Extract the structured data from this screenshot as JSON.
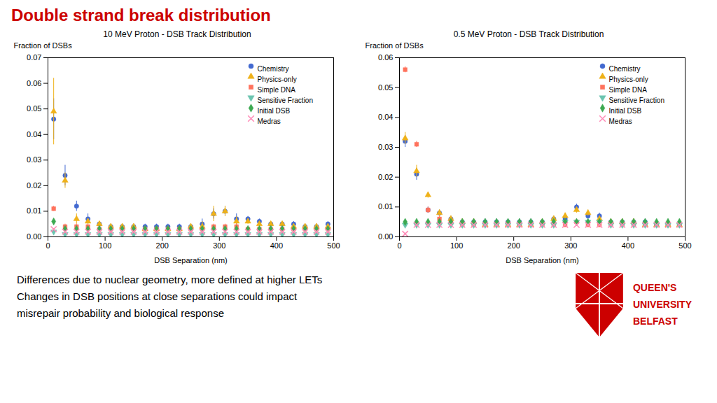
{
  "title": "Double strand break distribution",
  "annotations": [
    [
      "Differences due to nuclear geometry, more defined at higher LETs",
      "Changes in DSB positions at close separations could impact",
      "misrepair probability and biological response"
    ],
    [
      "QUEEN'S",
      "UNIVERSITY",
      "BELFAST"
    ]
  ],
  "chart_data": [
    {
      "type": "scatter",
      "title": "10 MeV Proton - DSB Track Distribution",
      "xlabel": "DSB Separation (nm)",
      "ylabel": "Fraction of DSBs",
      "xlim": [
        0,
        500
      ],
      "xticks": [
        0,
        100,
        200,
        300,
        400,
        500
      ],
      "ylim": [
        0,
        0.07
      ],
      "yticks": [
        {
          "value": 0,
          "label": "0.00"
        },
        {
          "value": 0.01,
          "label": "0.01"
        },
        {
          "value": 0.02,
          "label": "0.02"
        },
        {
          "value": 0.03,
          "label": "0.03"
        },
        {
          "value": 0.04,
          "label": "0.04"
        },
        {
          "value": 0.05,
          "label": "0.05"
        },
        {
          "value": 0.06,
          "label": "0.06"
        },
        {
          "value": 0.07,
          "label": "0.07"
        }
      ],
      "grid": false,
      "legend": "upper-right",
      "x": [
        10,
        30,
        50,
        70,
        90,
        110,
        130,
        150,
        170,
        190,
        210,
        230,
        250,
        270,
        290,
        310,
        330,
        350,
        370,
        390,
        410,
        430,
        450,
        470,
        490
      ],
      "series": [
        {
          "name": "Chemistry",
          "marker": "circle",
          "values": [
            0.046,
            0.024,
            0.012,
            0.007,
            0.005,
            0.004,
            0.004,
            0.004,
            0.004,
            0.004,
            0.004,
            0.004,
            0.004,
            0.005,
            0.009,
            0.01,
            0.007,
            0.007,
            0.006,
            0.005,
            0.005,
            0.005,
            0.004,
            0.004,
            0.005
          ],
          "yerr": [
            0.008,
            0.004,
            0.002,
            0.002,
            0.001,
            0.001,
            0.001,
            0.001,
            0.001,
            0.001,
            0.001,
            0.001,
            0.001,
            0.002,
            0.002,
            0.002,
            0.002,
            0.001,
            0.001,
            0.001,
            0.001,
            0.001,
            0.001,
            0.001,
            0.001
          ]
        },
        {
          "name": "Physics-only",
          "marker": "triangle-up",
          "values": [
            0.049,
            0.022,
            0.007,
            0.006,
            0.005,
            0.004,
            0.004,
            0.004,
            0.003,
            0.003,
            0.003,
            0.003,
            0.004,
            0.004,
            0.009,
            0.01,
            0.006,
            0.006,
            0.005,
            0.005,
            0.005,
            0.004,
            0.004,
            0.004,
            0.004
          ],
          "yerr": [
            0.013,
            0.003,
            0.002,
            0.001,
            0.001,
            0.001,
            0.001,
            0.001,
            0.001,
            0.001,
            0.001,
            0.001,
            0.001,
            0.002,
            0.003,
            0.002,
            0.002,
            0.001,
            0.001,
            0.001,
            0.001,
            0.001,
            0.001,
            0.001,
            0.001
          ]
        },
        {
          "name": "Simple DNA",
          "marker": "square",
          "values": [
            0.011,
            0.004,
            0.004,
            0.004,
            0.003,
            0.003,
            0.003,
            0.003,
            0.003,
            0.003,
            0.003,
            0.003,
            0.003,
            0.003,
            0.004,
            0.004,
            0.004,
            0.003,
            0.003,
            0.003,
            0.003,
            0.003,
            0.003,
            0.003,
            0.003
          ],
          "yerr": [
            0.001,
            0.001,
            0.001,
            0.001,
            0.0005,
            0.0005,
            0.0005,
            0.0005,
            0.0005,
            0.0005,
            0.0005,
            0.0005,
            0.0005,
            0.0005,
            0.001,
            0.001,
            0.001,
            0.001,
            0.0005,
            0.0005,
            0.0005,
            0.0005,
            0.0005,
            0.0005,
            0.0005
          ]
        },
        {
          "name": "Sensitive Fraction",
          "marker": "triangle-down",
          "values": [
            0.002,
            0.001,
            0.001,
            0.001,
            0.001,
            0.001,
            0.001,
            0.001,
            0.001,
            0.001,
            0.001,
            0.001,
            0.001,
            0.001,
            0.001,
            0.001,
            0.001,
            0.001,
            0.001,
            0.001,
            0.001,
            0.001,
            0.001,
            0.001,
            0.001
          ],
          "yerr": [
            0.0003,
            0.0002,
            0.0002,
            0.0002,
            0.0002,
            0.0002,
            0.0002,
            0.0002,
            0.0002,
            0.0002,
            0.0002,
            0.0002,
            0.0002,
            0.0002,
            0.0002,
            0.0002,
            0.0002,
            0.0002,
            0.0002,
            0.0002,
            0.0002,
            0.0002,
            0.0002,
            0.0002,
            0.0002
          ]
        },
        {
          "name": "Initial DSB",
          "marker": "diamond",
          "values": [
            0.006,
            0.003,
            0.003,
            0.003,
            0.003,
            0.003,
            0.003,
            0.003,
            0.003,
            0.003,
            0.003,
            0.003,
            0.003,
            0.003,
            0.003,
            0.003,
            0.003,
            0.003,
            0.003,
            0.003,
            0.003,
            0.003,
            0.003,
            0.003,
            0.003
          ],
          "yerr": [
            0.0005,
            0.0003,
            0.0003,
            0.0003,
            0.0003,
            0.0003,
            0.0003,
            0.0003,
            0.0003,
            0.0003,
            0.0003,
            0.0003,
            0.0003,
            0.0003,
            0.0003,
            0.0003,
            0.0003,
            0.0003,
            0.0003,
            0.0003,
            0.0003,
            0.0003,
            0.0003,
            0.0003,
            0.0003
          ]
        },
        {
          "name": "Medras",
          "marker": "x",
          "values": [
            0.003,
            0.002,
            0.002,
            0.002,
            0.002,
            0.002,
            0.002,
            0.002,
            0.002,
            0.002,
            0.002,
            0.002,
            0.002,
            0.002,
            0.002,
            0.002,
            0.002,
            0.002,
            0.002,
            0.002,
            0.002,
            0.002,
            0.002,
            0.002,
            0.002
          ],
          "yerr": [
            0.0003,
            0.0002,
            0.0002,
            0.0002,
            0.0002,
            0.0002,
            0.0002,
            0.0002,
            0.0002,
            0.0002,
            0.0002,
            0.0002,
            0.0002,
            0.0002,
            0.0002,
            0.0002,
            0.0002,
            0.0002,
            0.0002,
            0.0002,
            0.0002,
            0.0002,
            0.0002,
            0.0002,
            0.0002
          ]
        }
      ]
    },
    {
      "type": "scatter",
      "title": "0.5 MeV Proton - DSB Track Distribution",
      "xlabel": "DSB Separation (nm)",
      "ylabel": "Fraction of DSBs",
      "xlim": [
        0,
        500
      ],
      "xticks": [
        0,
        100,
        200,
        300,
        400,
        500
      ],
      "ylim": [
        0,
        0.06
      ],
      "yticks": [
        {
          "value": 0,
          "label": "0.00"
        },
        {
          "value": 0.01,
          "label": "0.01"
        },
        {
          "value": 0.02,
          "label": "0.02"
        },
        {
          "value": 0.03,
          "label": "0.03"
        },
        {
          "value": 0.04,
          "label": "0.04"
        },
        {
          "value": 0.05,
          "label": "0.05"
        },
        {
          "value": 0.06,
          "label": "0.06"
        }
      ],
      "grid": false,
      "legend": "upper-right",
      "x": [
        10,
        30,
        50,
        70,
        90,
        110,
        130,
        150,
        170,
        190,
        210,
        230,
        250,
        270,
        290,
        310,
        330,
        350,
        370,
        390,
        410,
        430,
        450,
        470,
        490
      ],
      "series": [
        {
          "name": "Chemistry",
          "marker": "circle",
          "values": [
            0.032,
            0.021,
            0.009,
            0.008,
            0.006,
            0.005,
            0.005,
            0.005,
            0.005,
            0.005,
            0.005,
            0.005,
            0.005,
            0.006,
            0.006,
            0.01,
            0.007,
            0.007,
            0.005,
            0.005,
            0.005,
            0.005,
            0.004,
            0.004,
            0.004
          ],
          "yerr": [
            0.002,
            0.002,
            0.001,
            0.001,
            0.001,
            0.001,
            0.001,
            0.001,
            0.001,
            0.001,
            0.001,
            0.001,
            0.001,
            0.001,
            0.001,
            0.001,
            0.001,
            0.001,
            0.001,
            0.001,
            0.001,
            0.001,
            0.001,
            0.001,
            0.001
          ]
        },
        {
          "name": "Physics-only",
          "marker": "triangle-up",
          "values": [
            0.033,
            0.022,
            0.014,
            0.008,
            0.006,
            0.005,
            0.005,
            0.004,
            0.004,
            0.004,
            0.004,
            0.004,
            0.005,
            0.006,
            0.007,
            0.009,
            0.008,
            0.006,
            0.005,
            0.005,
            0.005,
            0.004,
            0.004,
            0.004,
            0.004
          ],
          "yerr": [
            0.002,
            0.002,
            0.001,
            0.001,
            0.001,
            0.001,
            0.001,
            0.001,
            0.001,
            0.001,
            0.001,
            0.001,
            0.001,
            0.001,
            0.001,
            0.001,
            0.001,
            0.001,
            0.001,
            0.001,
            0.001,
            0.001,
            0.001,
            0.001,
            0.001
          ]
        },
        {
          "name": "Simple DNA",
          "marker": "square",
          "values": [
            0.056,
            0.031,
            0.009,
            0.006,
            0.005,
            0.004,
            0.004,
            0.004,
            0.004,
            0.004,
            0.004,
            0.004,
            0.004,
            0.004,
            0.004,
            0.005,
            0.004,
            0.004,
            0.004,
            0.004,
            0.004,
            0.004,
            0.004,
            0.004,
            0.004
          ],
          "yerr": [
            0.001,
            0.001,
            0.001,
            0.001,
            0.0005,
            0.0005,
            0.0005,
            0.0005,
            0.0005,
            0.0005,
            0.0005,
            0.0005,
            0.0005,
            0.0005,
            0.0005,
            0.001,
            0.0005,
            0.0005,
            0.0005,
            0.0005,
            0.0005,
            0.0005,
            0.0005,
            0.0005,
            0.0005
          ]
        },
        {
          "name": "Sensitive Fraction",
          "marker": "triangle-down",
          "values": [
            0.004,
            0.004,
            0.004,
            0.004,
            0.004,
            0.004,
            0.004,
            0.004,
            0.004,
            0.004,
            0.004,
            0.004,
            0.004,
            0.004,
            0.005,
            0.005,
            0.005,
            0.005,
            0.004,
            0.004,
            0.004,
            0.004,
            0.004,
            0.004,
            0.004
          ],
          "yerr": [
            0.0003,
            0.0003,
            0.0003,
            0.0003,
            0.0003,
            0.0003,
            0.0003,
            0.0003,
            0.0003,
            0.0003,
            0.0003,
            0.0003,
            0.0003,
            0.0003,
            0.0003,
            0.0003,
            0.0003,
            0.0003,
            0.0003,
            0.0003,
            0.0003,
            0.0003,
            0.0003,
            0.0003,
            0.0003
          ]
        },
        {
          "name": "Initial DSB",
          "marker": "diamond",
          "values": [
            0.005,
            0.005,
            0.005,
            0.005,
            0.005,
            0.005,
            0.005,
            0.005,
            0.005,
            0.005,
            0.005,
            0.005,
            0.005,
            0.005,
            0.005,
            0.005,
            0.005,
            0.005,
            0.005,
            0.005,
            0.005,
            0.005,
            0.005,
            0.005,
            0.005
          ],
          "yerr": [
            0.0004,
            0.0004,
            0.0004,
            0.0004,
            0.0004,
            0.0004,
            0.0004,
            0.0004,
            0.0004,
            0.0004,
            0.0004,
            0.0004,
            0.0004,
            0.0004,
            0.0004,
            0.0004,
            0.0004,
            0.0004,
            0.0004,
            0.0004,
            0.0004,
            0.0004,
            0.0004,
            0.0004,
            0.0004
          ]
        },
        {
          "name": "Medras",
          "marker": "x",
          "values": [
            0.001,
            0.004,
            0.004,
            0.004,
            0.004,
            0.004,
            0.004,
            0.004,
            0.004,
            0.004,
            0.004,
            0.004,
            0.004,
            0.004,
            0.004,
            0.004,
            0.004,
            0.004,
            0.004,
            0.004,
            0.004,
            0.004,
            0.004,
            0.004,
            0.004
          ],
          "yerr": [
            0.0002,
            0.0002,
            0.0002,
            0.0002,
            0.0002,
            0.0002,
            0.0002,
            0.0002,
            0.0002,
            0.0002,
            0.0002,
            0.0002,
            0.0002,
            0.0002,
            0.0002,
            0.0002,
            0.0002,
            0.0002,
            0.0002,
            0.0002,
            0.0002,
            0.0002,
            0.0002,
            0.0002,
            0.0002
          ]
        }
      ]
    }
  ]
}
